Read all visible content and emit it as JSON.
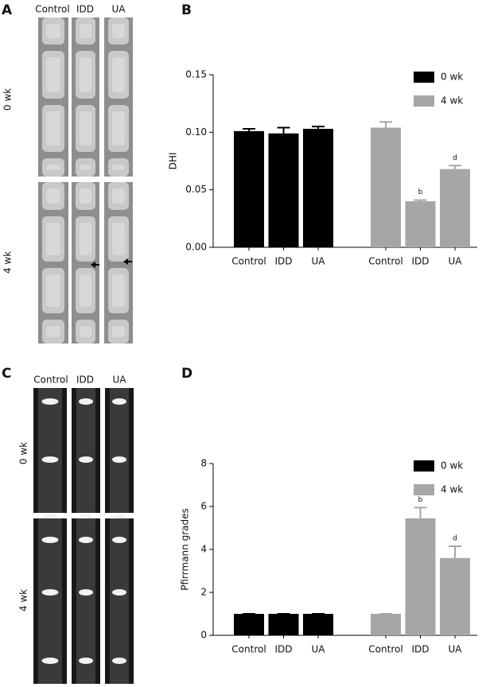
{
  "panels": {
    "A": {
      "label": "A",
      "columns": [
        "Control",
        "IDD",
        "UA"
      ],
      "rows": [
        "0 wk",
        "4 wk"
      ]
    },
    "C": {
      "label": "C",
      "columns": [
        "Control",
        "IDD",
        "UA"
      ],
      "rows": [
        "0 wk",
        "4 wk"
      ]
    }
  },
  "chart_data": [
    {
      "type": "bar",
      "label": "B",
      "y_label": "DHI",
      "categories": [
        "Control",
        "IDD",
        "UA",
        "Control",
        "IDD",
        "UA"
      ],
      "series": [
        {
          "name": "0 wk",
          "color": "#000000",
          "values": [
            0.101,
            0.099,
            0.103,
            null,
            null,
            null
          ],
          "errors": [
            0.002,
            0.005,
            0.002,
            null,
            null,
            null
          ]
        },
        {
          "name": "4 wk",
          "color": "#a6a6a6",
          "values": [
            null,
            null,
            null,
            0.104,
            0.04,
            0.068
          ],
          "errors": [
            null,
            null,
            null,
            0.005,
            0.001,
            0.003
          ],
          "significance": [
            null,
            null,
            null,
            null,
            "b",
            "d"
          ]
        }
      ],
      "ylim": [
        0,
        0.15
      ],
      "yticks": [
        {
          "value": 0,
          "label": "0.00"
        },
        0.05,
        {
          "value": 0.1,
          "label": "0.10"
        },
        0.15
      ],
      "legend": "upper-right"
    },
    {
      "type": "bar",
      "label": "D",
      "y_label": "Pfirrmann grades",
      "categories": [
        "Control",
        "IDD",
        "UA",
        "Control",
        "IDD",
        "UA"
      ],
      "series": [
        {
          "name": "0 wk",
          "color": "#000000",
          "values": [
            1,
            1,
            1,
            null,
            null,
            null
          ],
          "errors": [
            0,
            0,
            0,
            null,
            null,
            null
          ]
        },
        {
          "name": "4 wk",
          "color": "#a6a6a6",
          "values": [
            null,
            null,
            null,
            1,
            5.45,
            3.6
          ],
          "errors": [
            null,
            null,
            null,
            0,
            0.5,
            0.55
          ],
          "significance": [
            null,
            null,
            null,
            null,
            "b",
            "d"
          ]
        }
      ],
      "ylim": [
        0,
        8
      ],
      "yticks": [
        0,
        2,
        4,
        6,
        8
      ],
      "legend": "upper-right"
    }
  ]
}
